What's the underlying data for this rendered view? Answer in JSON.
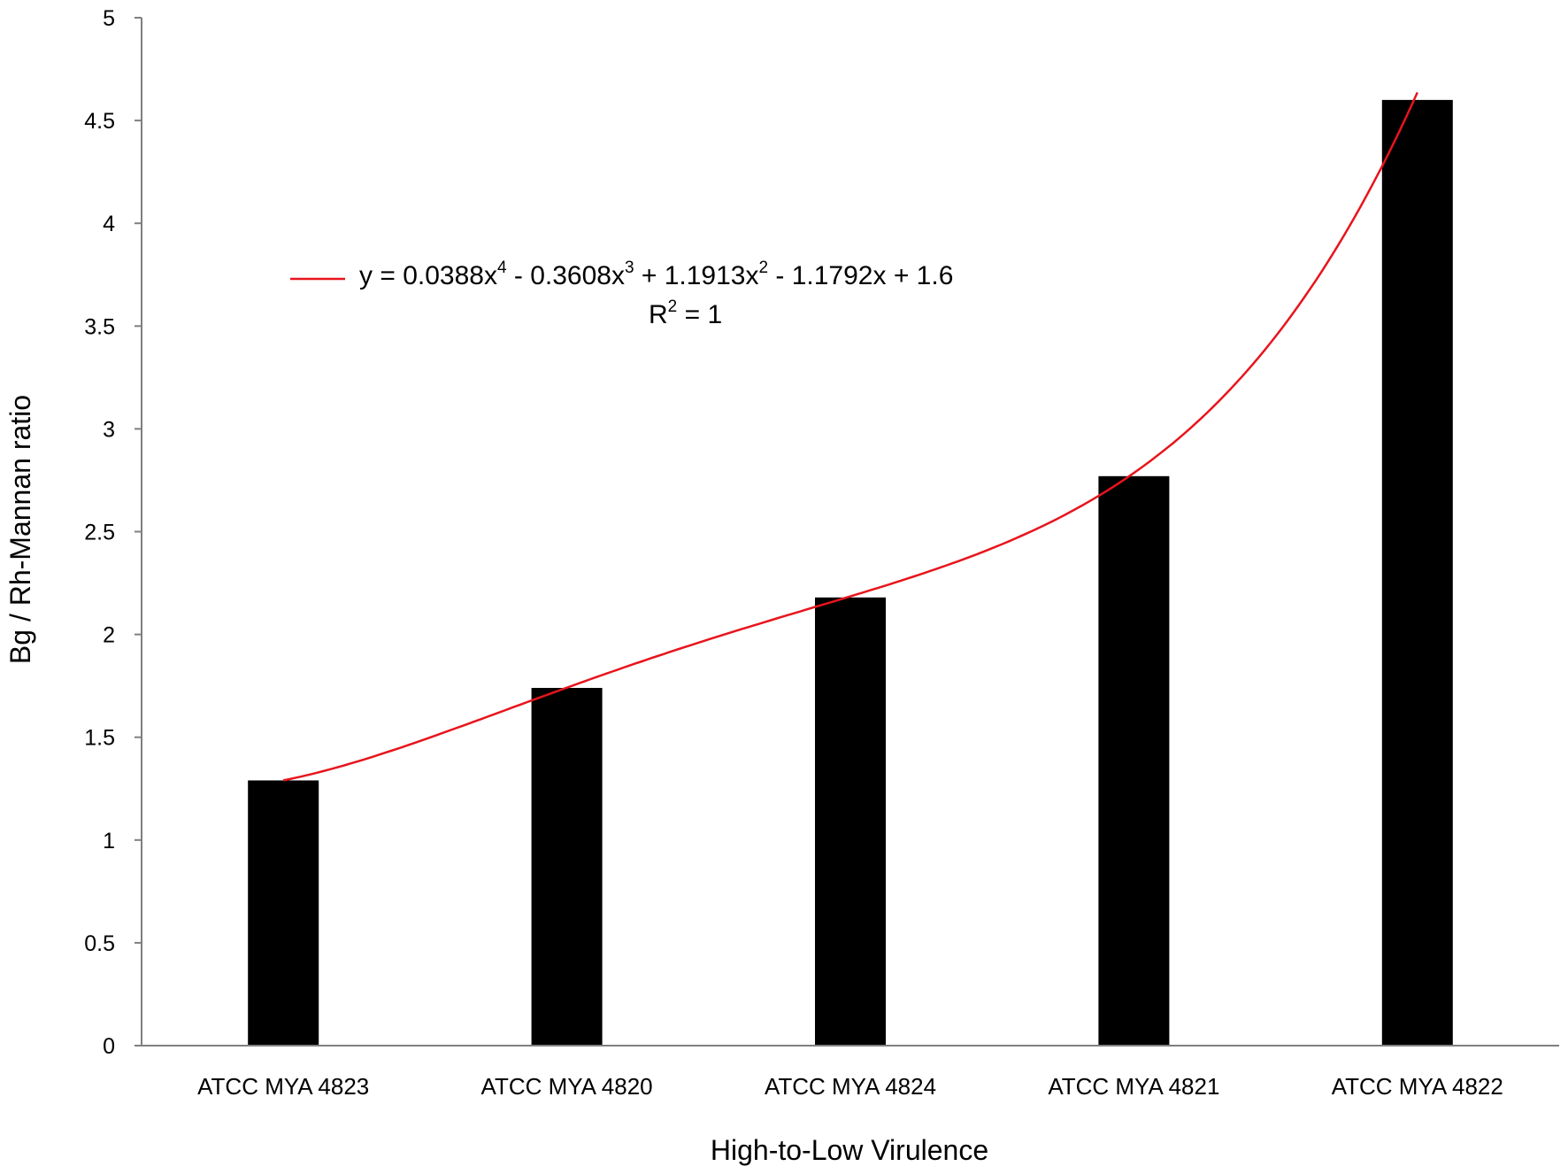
{
  "chart_data": {
    "type": "bar",
    "categories": [
      "ATCC MYA 4823",
      "ATCC MYA 4820",
      "ATCC MYA 4824",
      "ATCC MYA 4821",
      "ATCC MYA 4822"
    ],
    "values": [
      1.29,
      1.74,
      2.18,
      2.77,
      4.6
    ],
    "xlabel": "High-to-Low Virulence",
    "ylabel": "Bg / Rh-Mannan ratio",
    "ylim": [
      0,
      5
    ],
    "yticks": [
      "0",
      "0.5",
      "1",
      "1.5",
      "2",
      "2.5",
      "3",
      "3.5",
      "4",
      "4.5",
      "5"
    ],
    "ytick_values": [
      0,
      0.5,
      1,
      1.5,
      2,
      2.5,
      3,
      3.5,
      4,
      4.5,
      5
    ],
    "grid": false,
    "bar_color": "#000000",
    "trendline": {
      "type": "polynomial",
      "order": 4,
      "coefficients": [
        0.0388,
        -0.3608,
        1.1913,
        -1.1792,
        1.6
      ],
      "color": "#e8141c",
      "equation_parts": [
        "y = 0.0388x",
        "4",
        " - 0.3608x",
        "3",
        " + 1.1913x",
        "2",
        " - 1.1792x + 1.6"
      ],
      "r2_parts": [
        "R",
        "2",
        " = 1"
      ],
      "legend_position": "top-left"
    }
  }
}
